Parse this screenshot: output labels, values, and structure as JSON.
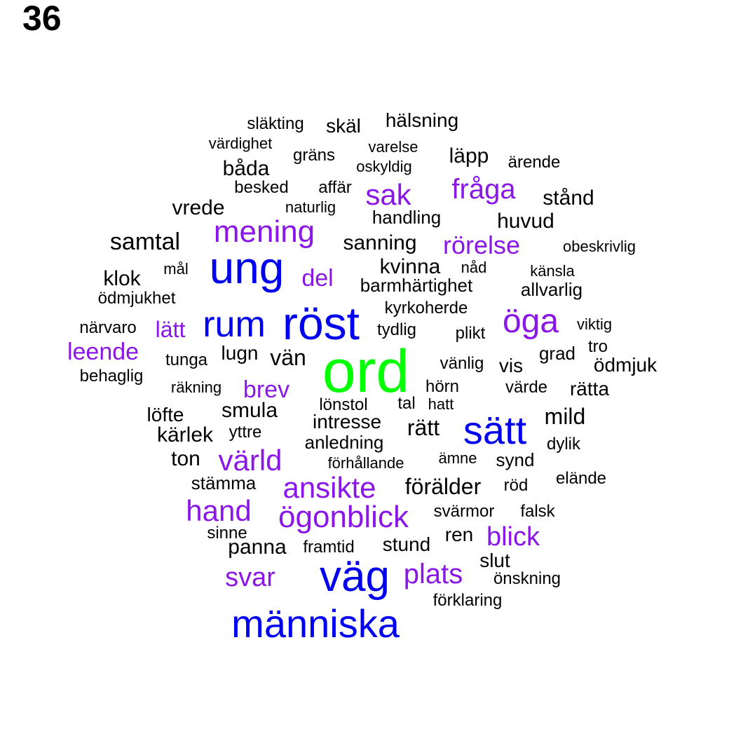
{
  "label": "36",
  "colors": {
    "tier1": "#00ff00",
    "tier2": "#0000ee",
    "tier3": "#8a16e8",
    "tier4": "#000000"
  },
  "words": [
    {
      "text": "ord",
      "tier": 1
    },
    {
      "text": "röst",
      "tier": 2
    },
    {
      "text": "ung",
      "tier": 2
    },
    {
      "text": "väg",
      "tier": 2
    },
    {
      "text": "människa",
      "tier": 2
    },
    {
      "text": "sätt",
      "tier": 2
    },
    {
      "text": "rum",
      "tier": 2
    },
    {
      "text": "öga",
      "tier": 3
    },
    {
      "text": "ögonblick",
      "tier": 3
    },
    {
      "text": "ansikte",
      "tier": 3
    },
    {
      "text": "mening",
      "tier": 3
    },
    {
      "text": "hand",
      "tier": 3
    },
    {
      "text": "värld",
      "tier": 3
    },
    {
      "text": "plats",
      "tier": 3
    },
    {
      "text": "blick",
      "tier": 3
    },
    {
      "text": "fråga",
      "tier": 3
    },
    {
      "text": "rörelse",
      "tier": 3
    },
    {
      "text": "sak",
      "tier": 3
    },
    {
      "text": "svar",
      "tier": 3
    },
    {
      "text": "leende",
      "tier": 3
    },
    {
      "text": "brev",
      "tier": 3
    },
    {
      "text": "del",
      "tier": 3
    },
    {
      "text": "lätt",
      "tier": 3
    },
    {
      "text": "samtal",
      "tier": 4
    },
    {
      "text": "förälder",
      "tier": 4
    },
    {
      "text": "vän",
      "tier": 4
    },
    {
      "text": "mild",
      "tier": 4
    },
    {
      "text": "rätt",
      "tier": 4
    },
    {
      "text": "smula",
      "tier": 4
    },
    {
      "text": "kärlek",
      "tier": 4
    },
    {
      "text": "ton",
      "tier": 4
    },
    {
      "text": "huvud",
      "tier": 4
    },
    {
      "text": "läpp",
      "tier": 4
    },
    {
      "text": "klok",
      "tier": 4
    },
    {
      "text": "vrede",
      "tier": 4
    },
    {
      "text": "sanning",
      "tier": 4
    },
    {
      "text": "båda",
      "tier": 4
    },
    {
      "text": "stånd",
      "tier": 4
    },
    {
      "text": "intresse",
      "tier": 4
    },
    {
      "text": "rätta",
      "tier": 4
    },
    {
      "text": "ödmjuk",
      "tier": 4
    },
    {
      "text": "kvinna",
      "tier": 4
    },
    {
      "text": "panna",
      "tier": 4
    },
    {
      "text": "stund",
      "tier": 4
    },
    {
      "text": "löfte",
      "tier": 4
    },
    {
      "text": "allvarlig",
      "tier": 4
    },
    {
      "text": "barmhärtighet",
      "tier": 4
    },
    {
      "text": "hälsning",
      "tier": 4
    },
    {
      "text": "handling",
      "tier": 4
    },
    {
      "text": "slut",
      "tier": 4
    },
    {
      "text": "stämma",
      "tier": 4
    },
    {
      "text": "lönstol",
      "tier": 4
    },
    {
      "text": "anledning",
      "tier": 4
    },
    {
      "text": "lugn",
      "tier": 4
    },
    {
      "text": "skäl",
      "tier": 4
    },
    {
      "text": "vis",
      "tier": 4
    },
    {
      "text": "kyrkoherde",
      "tier": 4
    },
    {
      "text": "tydlig",
      "tier": 4
    },
    {
      "text": "grad",
      "tier": 4
    },
    {
      "text": "ren",
      "tier": 4
    },
    {
      "text": "svärmor",
      "tier": 4
    },
    {
      "text": "vänlig",
      "tier": 4
    },
    {
      "text": "hörn",
      "tier": 4
    },
    {
      "text": "förklaring",
      "tier": 4
    },
    {
      "text": "synd",
      "tier": 4
    },
    {
      "text": "släkting",
      "tier": 4
    },
    {
      "text": "gräns",
      "tier": 4
    },
    {
      "text": "ärende",
      "tier": 4
    },
    {
      "text": "varelse",
      "tier": 4
    },
    {
      "text": "värdighet",
      "tier": 4
    },
    {
      "text": "oskyldig",
      "tier": 4
    },
    {
      "text": "besked",
      "tier": 4
    },
    {
      "text": "affär",
      "tier": 4
    },
    {
      "text": "naturlig",
      "tier": 4
    },
    {
      "text": "obeskrivlig",
      "tier": 4
    },
    {
      "text": "känsla",
      "tier": 4
    },
    {
      "text": "mål",
      "tier": 4
    },
    {
      "text": "nåd",
      "tier": 4
    },
    {
      "text": "ödmjukhet",
      "tier": 4
    },
    {
      "text": "närvaro",
      "tier": 4
    },
    {
      "text": "viktig",
      "tier": 4
    },
    {
      "text": "plikt",
      "tier": 4
    },
    {
      "text": "tro",
      "tier": 4
    },
    {
      "text": "behaglig",
      "tier": 4
    },
    {
      "text": "tunga",
      "tier": 4
    },
    {
      "text": "räkning",
      "tier": 4
    },
    {
      "text": "värde",
      "tier": 4
    },
    {
      "text": "tal",
      "tier": 4
    },
    {
      "text": "hatt",
      "tier": 4
    },
    {
      "text": "yttre",
      "tier": 4
    },
    {
      "text": "dylik",
      "tier": 4
    },
    {
      "text": "förhållande",
      "tier": 4
    },
    {
      "text": "ämne",
      "tier": 4
    },
    {
      "text": "elände",
      "tier": 4
    },
    {
      "text": "röd",
      "tier": 4
    },
    {
      "text": "falsk",
      "tier": 4
    },
    {
      "text": "sinne",
      "tier": 4
    },
    {
      "text": "framtid",
      "tier": 4
    },
    {
      "text": "önskning",
      "tier": 4
    }
  ]
}
